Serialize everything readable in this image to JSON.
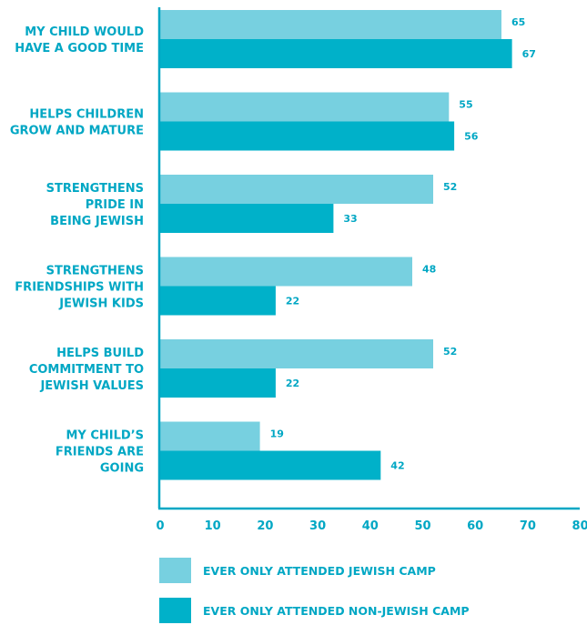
{
  "chart_data": {
    "type": "bar",
    "orientation": "horizontal",
    "categories": [
      [
        "MY CHILD WOULD",
        "HAVE A GOOD TIME"
      ],
      [
        "HELPS CHILDREN",
        "GROW AND MATURE"
      ],
      [
        "STRENGTHENS",
        "PRIDE IN",
        "BEING JEWISH"
      ],
      [
        "STRENGTHENS",
        "FRIENDSHIPS WITH",
        "JEWISH KIDS"
      ],
      [
        "HELPS BUILD",
        "COMMITMENT TO",
        "JEWISH VALUES"
      ],
      [
        "MY CHILD’S",
        "FRIENDS ARE",
        "GOING"
      ]
    ],
    "series": [
      {
        "name": "EVER ONLY ATTENDED JEWISH CAMP",
        "color": "#77d0e0",
        "values": [
          65,
          55,
          52,
          48,
          52,
          19
        ]
      },
      {
        "name": "EVER ONLY ATTENDED NON-JEWISH CAMP",
        "color": "#00b1c9",
        "values": [
          67,
          56,
          33,
          22,
          22,
          42
        ]
      }
    ],
    "xlim": [
      0,
      80
    ],
    "xticks": [
      0,
      10,
      20,
      30,
      40,
      50,
      60,
      70,
      80
    ],
    "title": "",
    "xlabel": "",
    "ylabel": "",
    "grid": false,
    "legend_position": "bottom",
    "axis_color": "#00a7c4",
    "label_color": "#00a7c4"
  }
}
